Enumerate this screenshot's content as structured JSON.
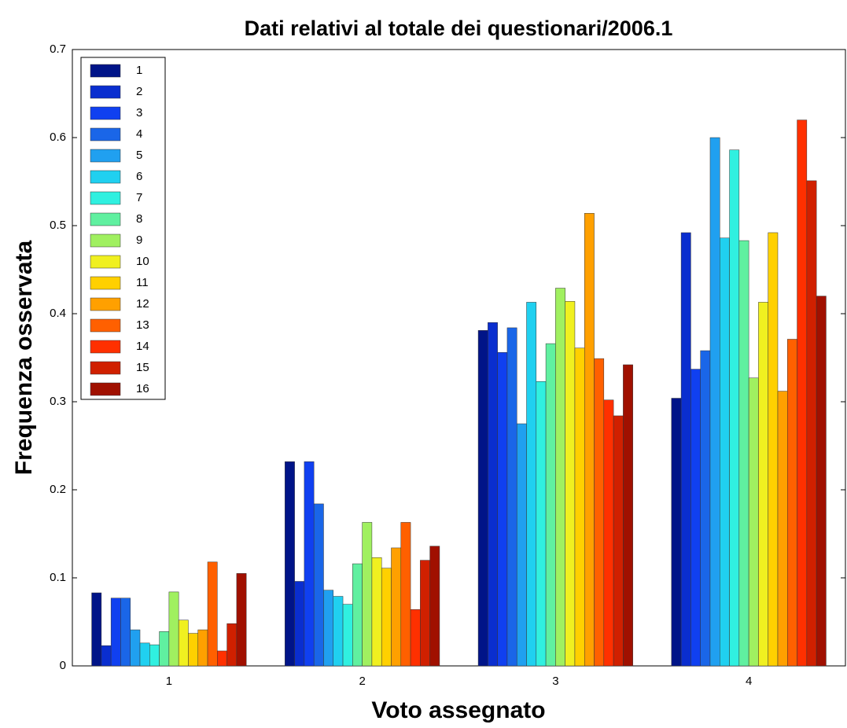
{
  "chart_data": {
    "type": "bar",
    "title": "Dati relativi al totale dei questionari/2006.1",
    "x_label": "Voto assegnato",
    "y_label": "Frequenza osservata",
    "categories": [
      "1",
      "2",
      "3",
      "4"
    ],
    "ylim": [
      0,
      0.7
    ],
    "yticks": [
      0,
      0.1,
      0.2,
      0.3,
      0.4,
      0.5,
      0.6,
      0.7
    ],
    "legend": "upper left",
    "series": [
      {
        "name": "1",
        "color": "#001488",
        "values": [
          0.083,
          0.232,
          0.381,
          0.304
        ]
      },
      {
        "name": "2",
        "color": "#0a2ecf",
        "values": [
          0.023,
          0.096,
          0.39,
          0.492
        ]
      },
      {
        "name": "3",
        "color": "#1040f0",
        "values": [
          0.077,
          0.232,
          0.356,
          0.337
        ]
      },
      {
        "name": "4",
        "color": "#1a66e8",
        "values": [
          0.077,
          0.184,
          0.384,
          0.358
        ]
      },
      {
        "name": "5",
        "color": "#20a0f0",
        "values": [
          0.041,
          0.086,
          0.275,
          0.6
        ]
      },
      {
        "name": "6",
        "color": "#20d0f0",
        "values": [
          0.026,
          0.079,
          0.413,
          0.486
        ]
      },
      {
        "name": "7",
        "color": "#30f0e0",
        "values": [
          0.024,
          0.07,
          0.323,
          0.586
        ]
      },
      {
        "name": "8",
        "color": "#60f0a0",
        "values": [
          0.039,
          0.116,
          0.366,
          0.483
        ]
      },
      {
        "name": "9",
        "color": "#a0f060",
        "values": [
          0.084,
          0.163,
          0.429,
          0.327
        ]
      },
      {
        "name": "10",
        "color": "#f0f020",
        "values": [
          0.052,
          0.123,
          0.414,
          0.413
        ]
      },
      {
        "name": "11",
        "color": "#ffd000",
        "values": [
          0.037,
          0.111,
          0.361,
          0.492
        ]
      },
      {
        "name": "12",
        "color": "#ffa000",
        "values": [
          0.041,
          0.134,
          0.514,
          0.312
        ]
      },
      {
        "name": "13",
        "color": "#ff6000",
        "values": [
          0.118,
          0.163,
          0.349,
          0.371
        ]
      },
      {
        "name": "14",
        "color": "#ff3000",
        "values": [
          0.017,
          0.064,
          0.302,
          0.62
        ]
      },
      {
        "name": "15",
        "color": "#d02000",
        "values": [
          0.048,
          0.12,
          0.284,
          0.551
        ]
      },
      {
        "name": "16",
        "color": "#a01000",
        "values": [
          0.105,
          0.136,
          0.342,
          0.42
        ]
      }
    ]
  }
}
